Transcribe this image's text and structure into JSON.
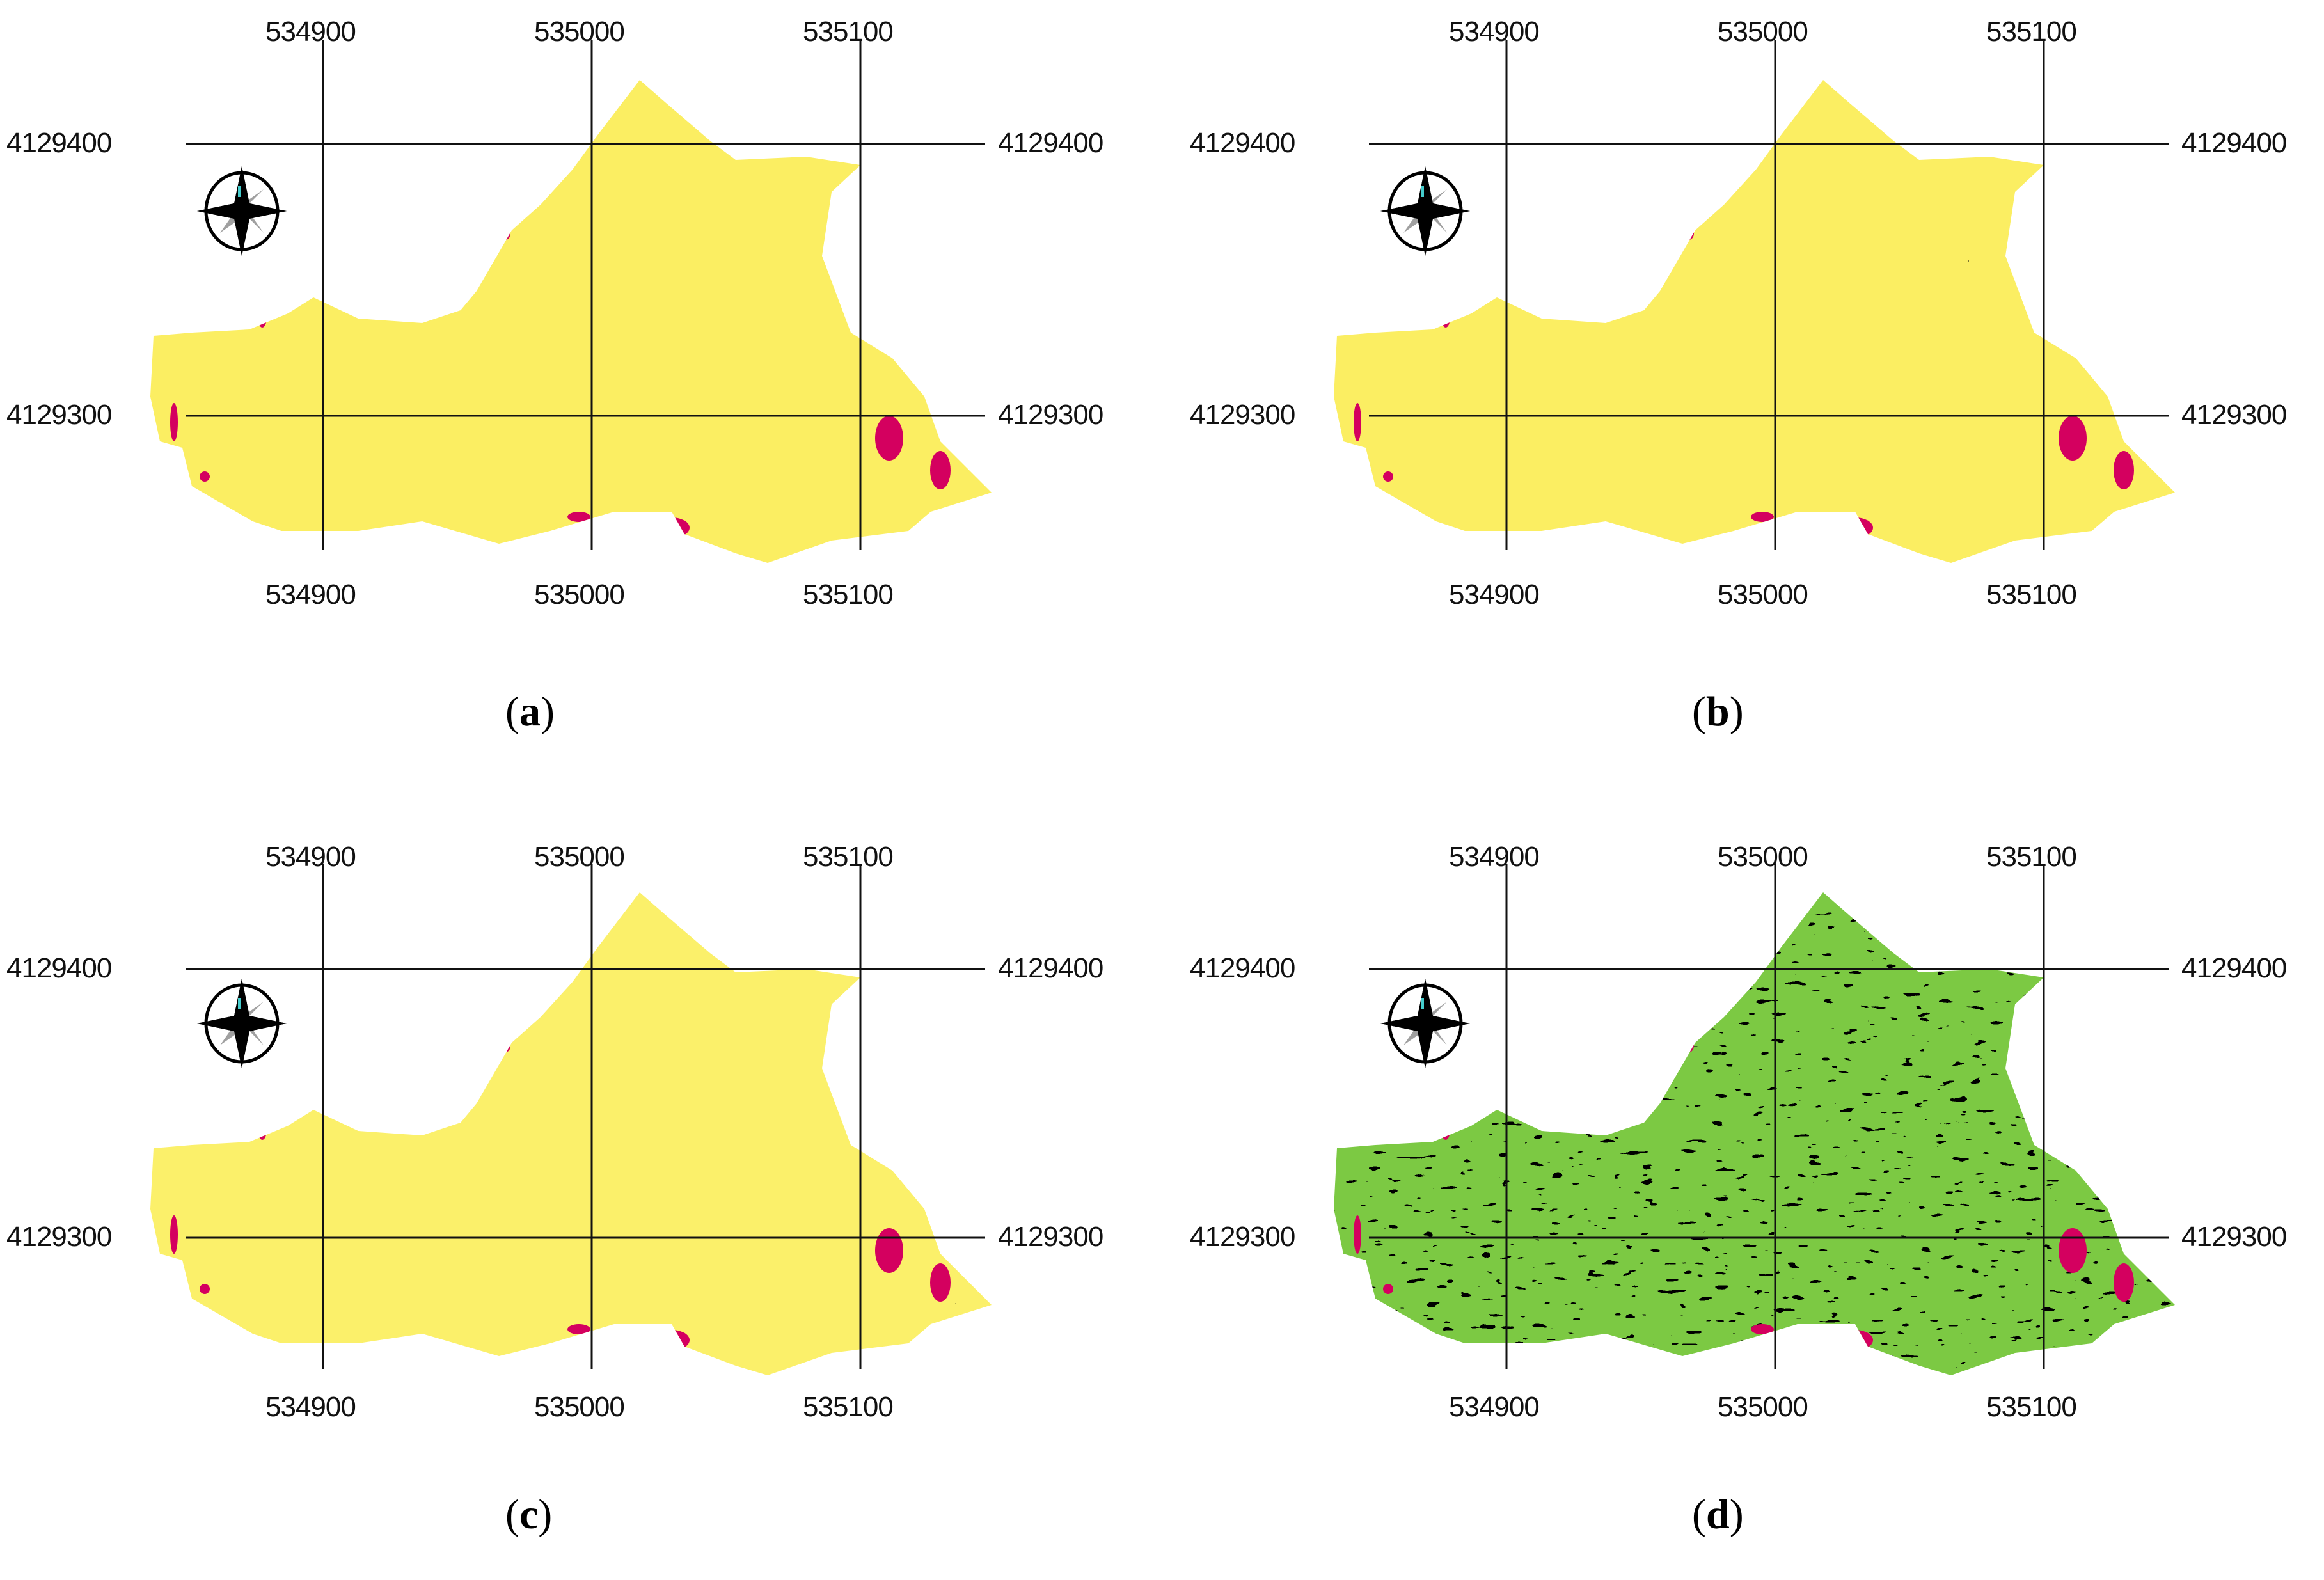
{
  "figure": {
    "panels": [
      {
        "id": "a",
        "caption_letter": "a",
        "x_ticks_top": [
          "534900",
          "535000",
          "535100"
        ],
        "x_ticks_bottom": [
          "534900",
          "535000",
          "535100"
        ],
        "y_ticks_left": [
          "4129400",
          "4129300"
        ],
        "y_ticks_right": [
          "4129400",
          "4129300"
        ],
        "palette": {
          "base": "#fbee62",
          "mid": "#f7a335",
          "high": "#f25a1c",
          "extreme": "#d4005f"
        },
        "scheme": "yellow-orange-red"
      },
      {
        "id": "b",
        "caption_letter": "b",
        "x_ticks_top": [
          "534900",
          "535000",
          "535100"
        ],
        "x_ticks_bottom": [
          "534900",
          "535000",
          "535100"
        ],
        "y_ticks_left": [
          "4129400",
          "4129300"
        ],
        "y_ticks_right": [
          "4129400",
          "4129300"
        ],
        "palette": {
          "base": "#fbee62",
          "mid": "#f7a335",
          "high": "#ee3222",
          "extreme": "#d4005f"
        },
        "scheme": "yellow-orange-red"
      },
      {
        "id": "c",
        "caption_letter": "c",
        "x_ticks_top": [
          "534900",
          "535000",
          "535100"
        ],
        "x_ticks_bottom": [
          "534900",
          "535000",
          "535100"
        ],
        "y_ticks_left": [
          "4129400",
          "4129300"
        ],
        "y_ticks_right": [
          "4129400",
          "4129300"
        ],
        "palette": {
          "base": "#fbf06a",
          "mid": "#f7a335",
          "high": "#2e8b2e",
          "extreme": "#d4005f"
        },
        "scheme": "yellow-green-red"
      },
      {
        "id": "d",
        "caption_letter": "d",
        "x_ticks_top": [
          "534900",
          "535000",
          "535100"
        ],
        "x_ticks_bottom": [
          "534900",
          "535000",
          "535100"
        ],
        "y_ticks_left": [
          "4129400",
          "4129300"
        ],
        "y_ticks_right": [
          "4129400",
          "4129300"
        ],
        "palette": {
          "base": "#7cc943",
          "mid": "#f2e36a",
          "high": "#f25a1c",
          "extreme": "#d4005f"
        },
        "scheme": "green-yellow-red"
      }
    ],
    "north_arrow_icon": "compass-rose-icon"
  }
}
